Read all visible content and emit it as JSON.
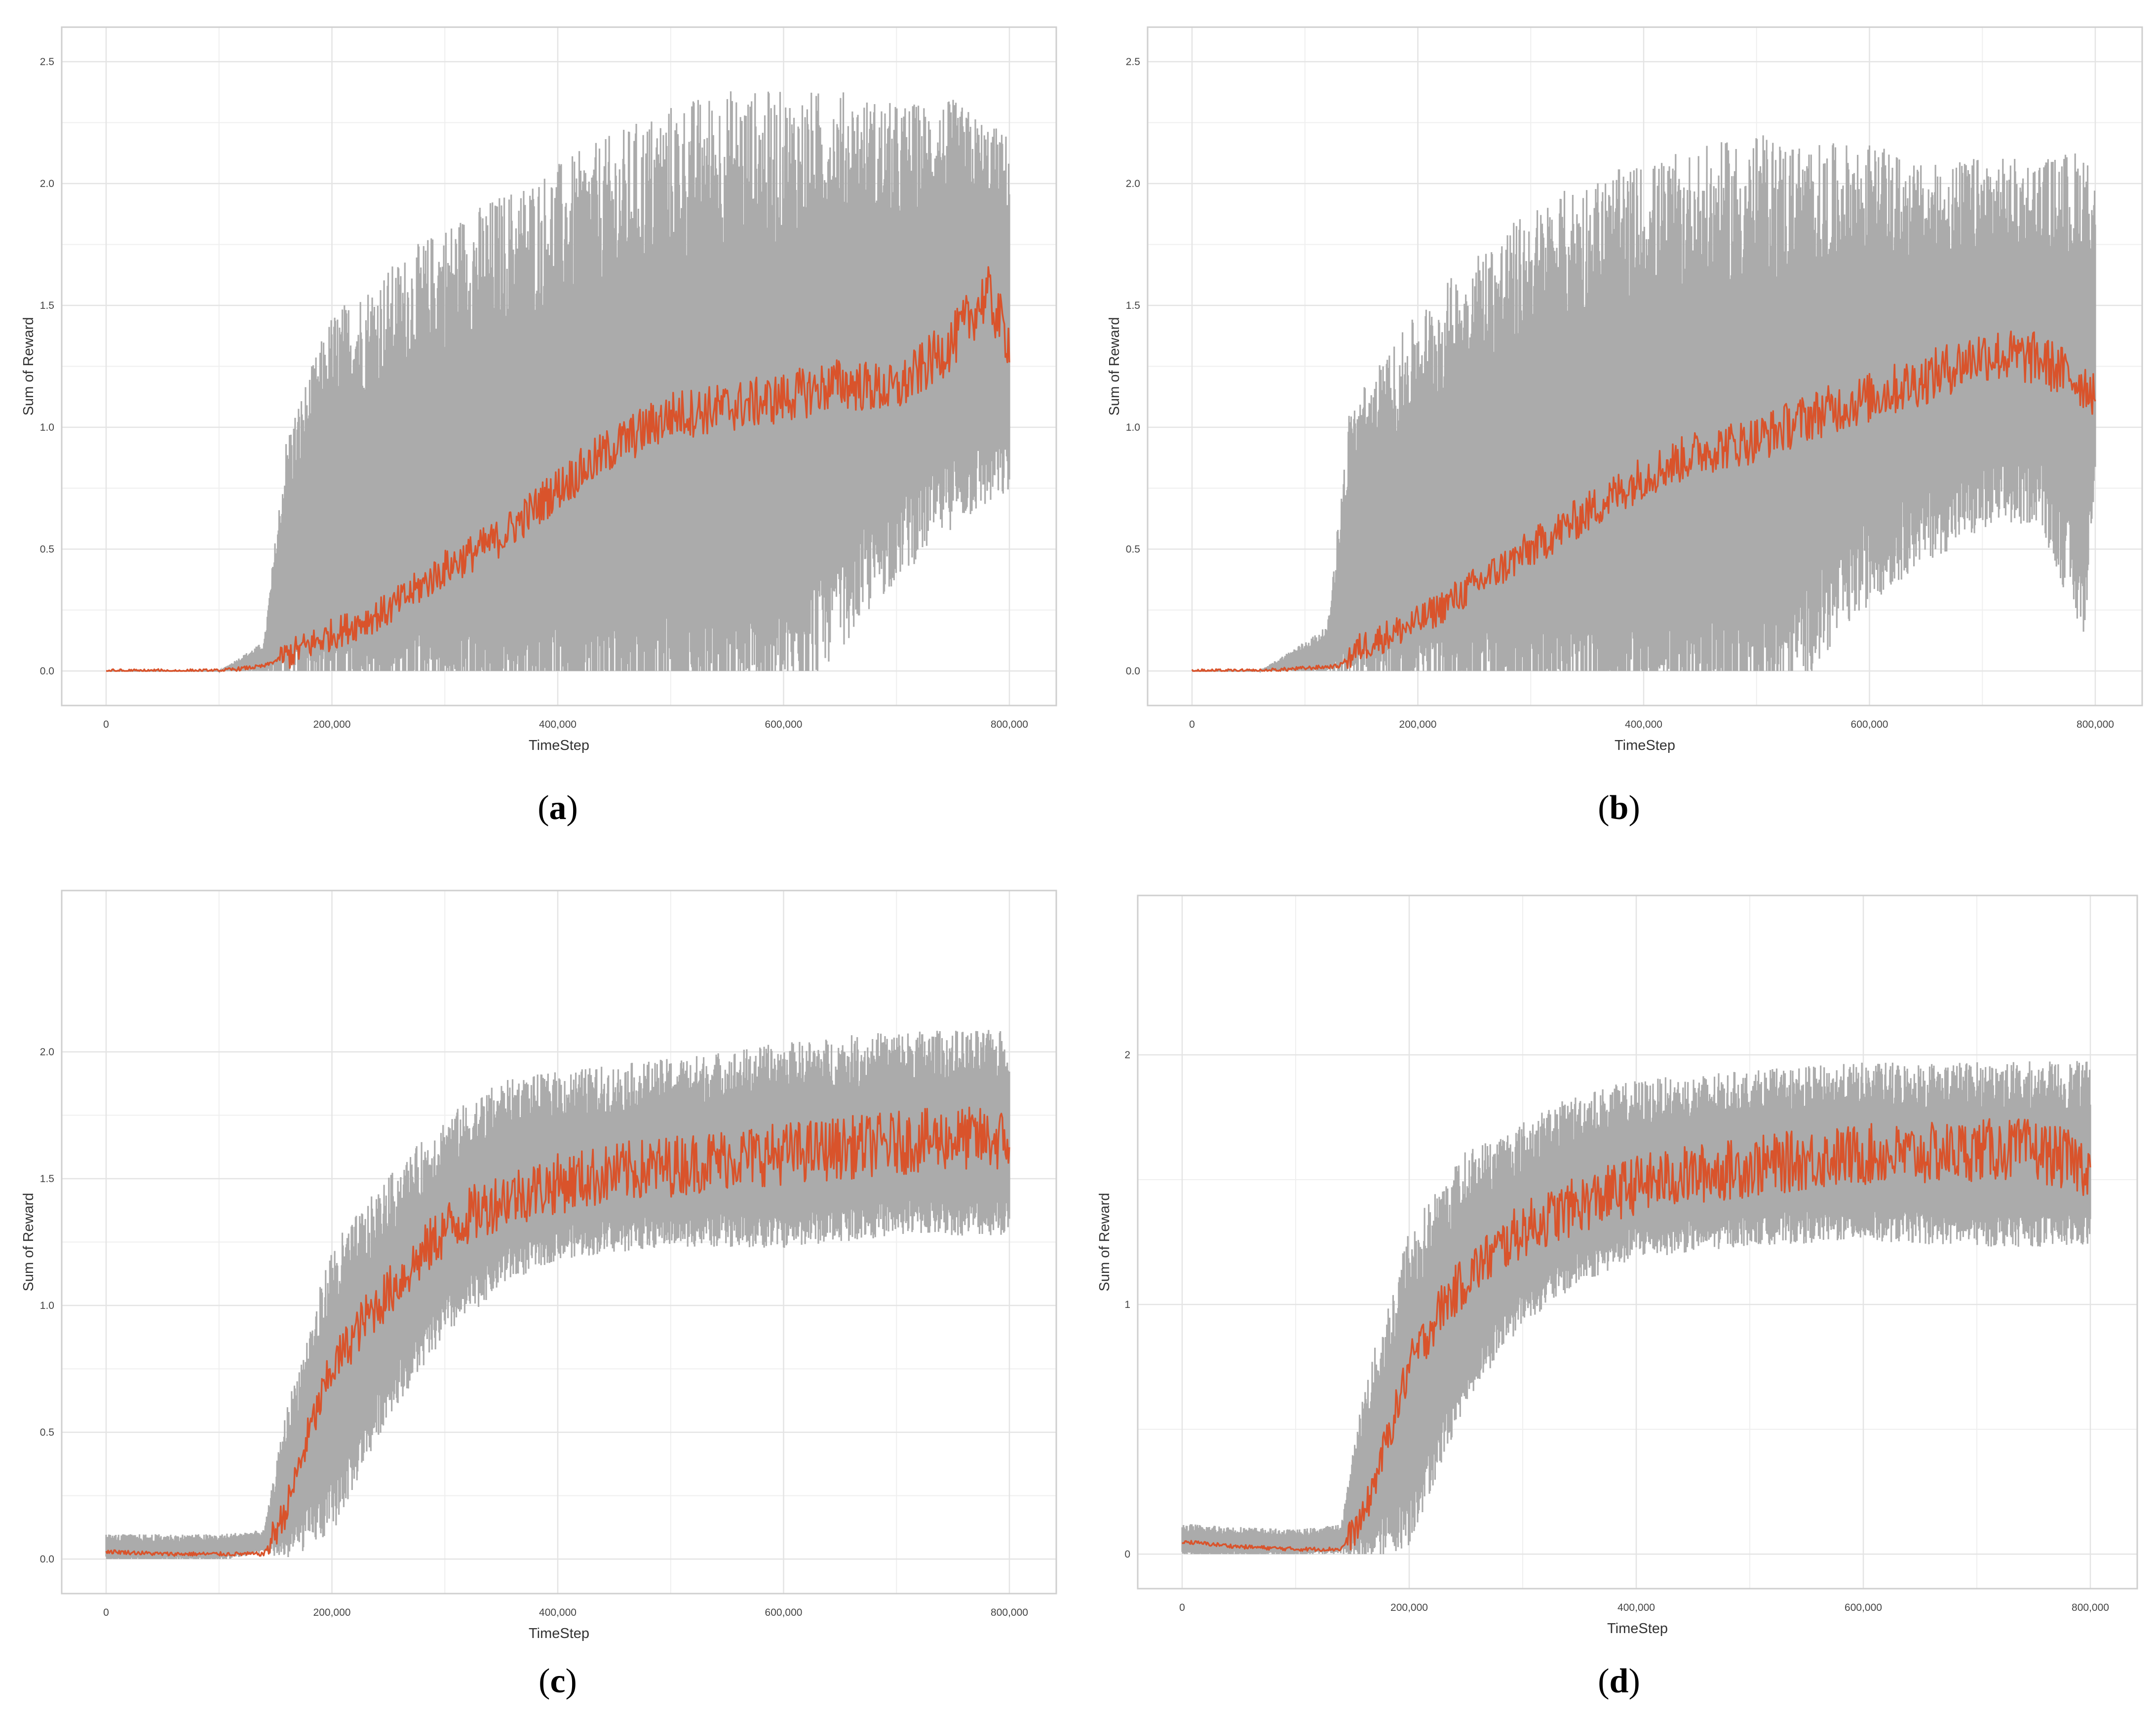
{
  "colors": {
    "band": "#ababab",
    "mean": "#d9532b",
    "grid": "#e4e4e4",
    "frame": "#cfcfcf"
  },
  "chart_data": [
    {
      "type": "line",
      "panel_label": "a",
      "xlabel": "TimeStep",
      "ylabel": "Sum of Reward",
      "xlim": [
        0,
        800000
      ],
      "ylim": [
        0,
        2.5
      ],
      "x_ticks": [
        0,
        200000,
        400000,
        600000,
        800000
      ],
      "x_tick_labels": [
        "0",
        "200,000",
        "400,000",
        "600,000",
        "800,000"
      ],
      "y_ticks": [
        0,
        0.5,
        1.0,
        1.5,
        2.0,
        2.5
      ],
      "y_tick_labels": [
        "0.0",
        "0.5",
        "1.0",
        "1.5",
        "2.0",
        "2.5"
      ],
      "grid": true,
      "series": [
        {
          "style": "mean",
          "x": [
            0,
            100000,
            140000,
            200000,
            250000,
            300000,
            350000,
            400000,
            450000,
            500000,
            550000,
            600000,
            650000,
            700000,
            750000,
            780000,
            800000
          ],
          "y": [
            0,
            0,
            0.02,
            0.15,
            0.25,
            0.42,
            0.55,
            0.75,
            0.92,
            1.05,
            1.08,
            1.12,
            1.18,
            1.15,
            1.35,
            1.55,
            1.35
          ]
        },
        {
          "style": "band_high",
          "x": [
            0,
            100000,
            140000,
            160000,
            200000,
            250000,
            300000,
            350000,
            400000,
            450000,
            500000,
            550000,
            600000,
            650000,
            700000,
            750000,
            800000
          ],
          "y": [
            0,
            0,
            0.1,
            0.8,
            1.2,
            1.35,
            1.5,
            1.6,
            1.7,
            1.8,
            1.9,
            1.95,
            1.95,
            2.0,
            2.0,
            2.05,
            1.95
          ]
        },
        {
          "style": "band_low",
          "x": [
            0,
            100000,
            300000,
            400000,
            500000,
            550000,
            600000,
            650000,
            700000,
            750000,
            800000
          ],
          "y": [
            0,
            0,
            0,
            0,
            0,
            0,
            0.05,
            0.3,
            0.55,
            0.75,
            0.85
          ]
        }
      ]
    },
    {
      "type": "line",
      "panel_label": "b",
      "xlabel": "TimeStep",
      "ylabel": "Sum of Reward",
      "xlim": [
        0,
        800000
      ],
      "ylim": [
        0,
        2.5
      ],
      "x_ticks": [
        0,
        200000,
        400000,
        600000,
        800000
      ],
      "x_tick_labels": [
        "0",
        "200,000",
        "400,000",
        "600,000",
        "800,000"
      ],
      "y_ticks": [
        0,
        0.5,
        1.0,
        1.5,
        2.0,
        2.5
      ],
      "y_tick_labels": [
        "0.0",
        "0.5",
        "1.0",
        "1.5",
        "2.0",
        "2.5"
      ],
      "grid": true,
      "series": [
        {
          "style": "mean",
          "x": [
            0,
            60000,
            130000,
            150000,
            200000,
            250000,
            300000,
            350000,
            400000,
            450000,
            500000,
            550000,
            600000,
            650000,
            700000,
            750000,
            800000
          ],
          "y": [
            0,
            0,
            0.02,
            0.1,
            0.2,
            0.35,
            0.5,
            0.65,
            0.8,
            0.9,
            0.95,
            1.05,
            1.12,
            1.2,
            1.3,
            1.28,
            1.15
          ]
        },
        {
          "style": "band_high",
          "x": [
            0,
            60000,
            120000,
            140000,
            200000,
            250000,
            300000,
            350000,
            400000,
            450000,
            500000,
            550000,
            600000,
            650000,
            700000,
            750000,
            800000
          ],
          "y": [
            0,
            0,
            0.15,
            0.9,
            1.2,
            1.4,
            1.55,
            1.65,
            1.7,
            1.75,
            1.8,
            1.8,
            1.85,
            1.8,
            1.85,
            1.85,
            1.8
          ]
        },
        {
          "style": "band_low",
          "x": [
            0,
            400000,
            480000,
            520000,
            560000,
            600000,
            650000,
            700000,
            750000,
            790000,
            800000
          ],
          "y": [
            0,
            0,
            0,
            0.05,
            0.25,
            0.45,
            0.6,
            0.7,
            0.75,
            0.3,
            0.9
          ]
        }
      ]
    },
    {
      "type": "line",
      "panel_label": "c",
      "xlabel": "TimeStep",
      "ylabel": "Sum of Reward",
      "xlim": [
        0,
        800000
      ],
      "ylim": [
        0,
        2.5
      ],
      "x_ticks": [
        0,
        200000,
        400000,
        600000,
        800000
      ],
      "x_tick_labels": [
        "0",
        "200,000",
        "400,000",
        "600,000",
        "800,000"
      ],
      "y_ticks": [
        0,
        0.5,
        1.0,
        1.5,
        2.0
      ],
      "y_tick_labels": [
        "0.0",
        "0.5",
        "1.0",
        "1.5",
        "2.0"
      ],
      "grid": true,
      "series": [
        {
          "style": "mean",
          "x": [
            0,
            50000,
            100000,
            140000,
            160000,
            180000,
            200000,
            230000,
            260000,
            300000,
            350000,
            400000,
            450000,
            500000,
            550000,
            600000,
            650000,
            700000,
            750000,
            800000
          ],
          "y": [
            0.03,
            0.02,
            0.02,
            0.02,
            0.2,
            0.5,
            0.75,
            0.95,
            1.1,
            1.3,
            1.42,
            1.48,
            1.52,
            1.55,
            1.58,
            1.6,
            1.62,
            1.64,
            1.66,
            1.65
          ]
        },
        {
          "style": "band_high",
          "x": [
            0,
            100000,
            140000,
            160000,
            200000,
            250000,
            300000,
            350000,
            400000,
            500000,
            600000,
            700000,
            800000
          ],
          "y": [
            0.08,
            0.08,
            0.1,
            0.5,
            1.05,
            1.35,
            1.6,
            1.75,
            1.8,
            1.85,
            1.9,
            1.95,
            1.95
          ]
        },
        {
          "style": "band_low",
          "x": [
            0,
            100000,
            160000,
            200000,
            250000,
            300000,
            350000,
            400000,
            500000,
            600000,
            700000,
            800000
          ],
          "y": [
            0,
            0,
            0.05,
            0.2,
            0.65,
            0.95,
            1.15,
            1.25,
            1.3,
            1.3,
            1.35,
            1.35
          ]
        }
      ]
    },
    {
      "type": "line",
      "panel_label": "d",
      "xlabel": "TimeStep",
      "ylabel": "Sum of Reward",
      "xlim": [
        0,
        800000
      ],
      "ylim": [
        0,
        2.5
      ],
      "x_ticks": [
        0,
        200000,
        400000,
        600000,
        800000
      ],
      "x_tick_labels": [
        "0",
        "200,000",
        "400,000",
        "600,000",
        "800,000"
      ],
      "y_ticks": [
        0,
        1,
        2
      ],
      "y_tick_labels": [
        "0",
        "1",
        "2"
      ],
      "grid": true,
      "series": [
        {
          "style": "mean",
          "x": [
            0,
            50000,
            100000,
            140000,
            160000,
            180000,
            200000,
            230000,
            260000,
            300000,
            350000,
            400000,
            450000,
            500000,
            550000,
            600000,
            650000,
            700000,
            750000,
            800000
          ],
          "y": [
            0.05,
            0.03,
            0.02,
            0.02,
            0.15,
            0.45,
            0.75,
            1.0,
            1.15,
            1.3,
            1.4,
            1.48,
            1.52,
            1.55,
            1.58,
            1.6,
            1.6,
            1.62,
            1.62,
            1.55
          ]
        },
        {
          "style": "band_high",
          "x": [
            0,
            100000,
            140000,
            160000,
            200000,
            250000,
            300000,
            350000,
            400000,
            500000,
            600000,
            700000,
            800000
          ],
          "y": [
            0.1,
            0.08,
            0.1,
            0.55,
            1.1,
            1.45,
            1.6,
            1.72,
            1.78,
            1.82,
            1.85,
            1.85,
            1.85
          ]
        },
        {
          "style": "band_low",
          "x": [
            0,
            100000,
            160000,
            200000,
            250000,
            300000,
            350000,
            400000,
            500000,
            600000,
            700000,
            800000
          ],
          "y": [
            0,
            0,
            0.02,
            0.15,
            0.7,
            1.0,
            1.15,
            1.25,
            1.3,
            1.32,
            1.3,
            1.3
          ]
        }
      ]
    }
  ]
}
